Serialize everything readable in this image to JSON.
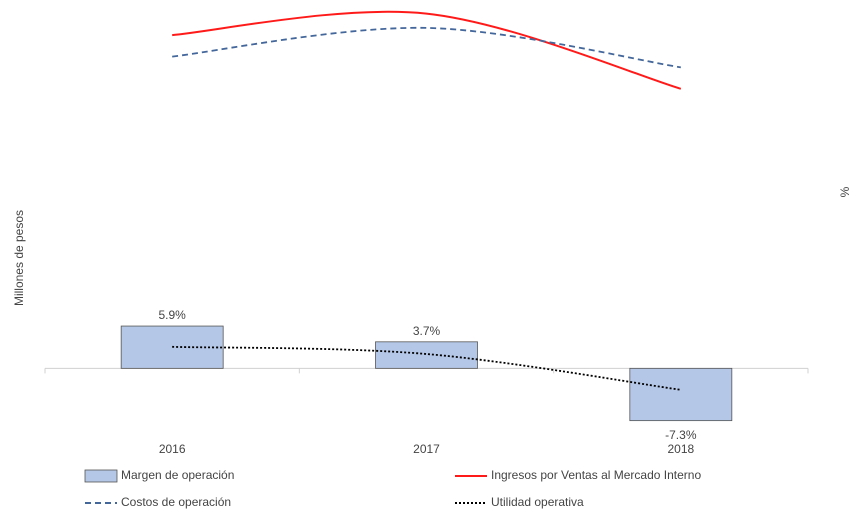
{
  "chart_data": {
    "type": "bar-line",
    "y_label": "Millones de pesos",
    "y2_label": "%",
    "categories": [
      "2016",
      "2017",
      "2018"
    ],
    "ylim": [
      -2000,
      10000
    ],
    "y2lim": [
      -10,
      50
    ],
    "series": [
      {
        "name": "Margen de operación",
        "type": "bar",
        "axis": "y2",
        "color": "#b4c7e7",
        "values": [
          5.9,
          3.7,
          -7.3
        ],
        "value_labels": [
          "5.9%",
          "3.7%",
          "-7.3%"
        ]
      },
      {
        "name": "Ingresos por Ventas al Mercado Interno",
        "type": "line",
        "style": "solid",
        "color": "#ff1a1a",
        "values": [
          9300,
          9900,
          7800
        ]
      },
      {
        "name": "Costos de operación",
        "type": "line",
        "style": "dashed",
        "color": "#44679b",
        "values": [
          8700,
          9500,
          8400
        ]
      },
      {
        "name": "Utilidad operativa",
        "type": "line",
        "style": "dotted",
        "color": "#000000",
        "values": [
          600,
          400,
          -600
        ]
      }
    ]
  }
}
